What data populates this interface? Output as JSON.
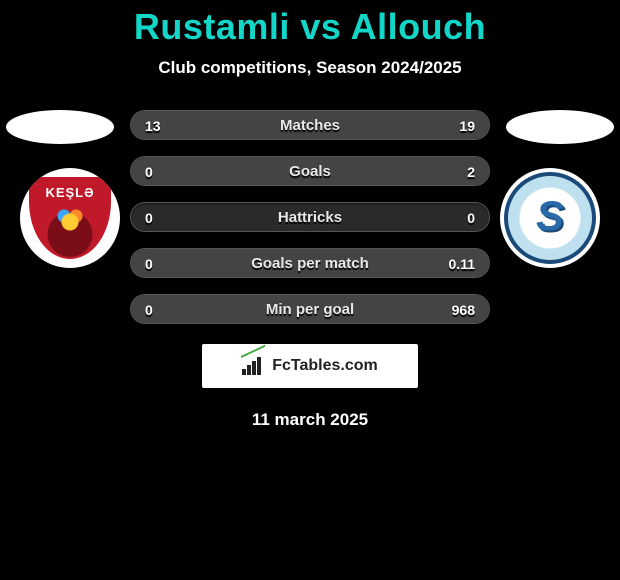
{
  "title": "Rustamli vs Allouch",
  "subtitle": "Club competitions, Season 2024/2025",
  "date": "11 march 2025",
  "title_color": "#12d6c8",
  "left_club": {
    "short": "KEŞLƏ",
    "badge_primary": "#c01a2a"
  },
  "right_club": {
    "short": "S",
    "badge_primary": "#2a6aa8"
  },
  "brand": "FcTables.com",
  "rows": [
    {
      "label": "Matches",
      "left": "13",
      "right": "19",
      "left_pct": 40,
      "right_pct": 60,
      "fill_color": "#444444"
    },
    {
      "label": "Goals",
      "left": "0",
      "right": "2",
      "left_pct": 0,
      "right_pct": 100,
      "fill_color": "#444444"
    },
    {
      "label": "Hattricks",
      "left": "0",
      "right": "0",
      "left_pct": 0,
      "right_pct": 0,
      "fill_color": "#444444"
    },
    {
      "label": "Goals per match",
      "left": "0",
      "right": "0.11",
      "left_pct": 0,
      "right_pct": 100,
      "fill_color": "#444444"
    },
    {
      "label": "Min per goal",
      "left": "0",
      "right": "968",
      "left_pct": 0,
      "right_pct": 100,
      "fill_color": "#444444"
    }
  ]
}
